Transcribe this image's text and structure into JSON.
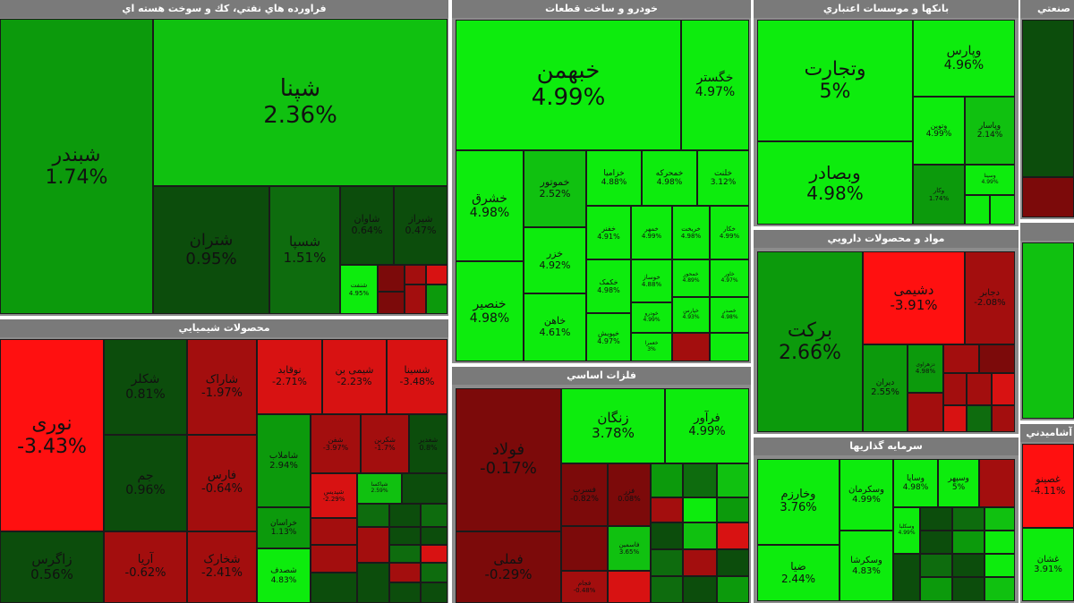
{
  "sectors": {
    "refinery": {
      "title": "فراورده هاي نفتي، كك و سوخت هسته اي",
      "tiles": [
        {
          "sym": "شبندر",
          "pct": "1.74%"
        },
        {
          "sym": "شپنا",
          "pct": "2.36%"
        },
        {
          "sym": "شتران",
          "pct": "0.95%"
        },
        {
          "sym": "شسپا",
          "pct": "1.51%"
        },
        {
          "sym": "شاوان",
          "pct": "0.64%"
        },
        {
          "sym": "شیراز",
          "pct": "0.47%"
        },
        {
          "sym": "شنفت",
          "pct": "4.95%"
        }
      ]
    },
    "auto": {
      "title": "خودرو و ساخت قطعات",
      "tiles": [
        {
          "sym": "خبهمن",
          "pct": "4.99%"
        },
        {
          "sym": "خگستر",
          "pct": "4.97%"
        },
        {
          "sym": "خشرق",
          "pct": "4.98%"
        },
        {
          "sym": "خموتور",
          "pct": "2.52%"
        },
        {
          "sym": "خزامیا",
          "pct": "4.88%"
        },
        {
          "sym": "خمحرکه",
          "pct": "4.98%"
        },
        {
          "sym": "خلنت",
          "pct": "3.12%"
        },
        {
          "sym": "خزر",
          "pct": "4.92%"
        },
        {
          "sym": "خفنر",
          "pct": "4.91%"
        },
        {
          "sym": "خمهر",
          "pct": "4.99%"
        },
        {
          "sym": "خریخت",
          "pct": "4.98%"
        },
        {
          "sym": "خکار",
          "pct": "4.99%"
        },
        {
          "sym": "خصدر",
          "pct": "4.98%"
        },
        {
          "sym": "خکمک",
          "pct": "4.98%"
        },
        {
          "sym": "خوساز",
          "pct": "4.88%"
        },
        {
          "sym": "خمحور",
          "pct": "4.89%"
        },
        {
          "sym": "خاور",
          "pct": "4.97%"
        },
        {
          "sym": "خاهن",
          "pct": "4.61%"
        },
        {
          "sym": "خپویش",
          "pct": "4.97%"
        },
        {
          "sym": "خودرو",
          "pct": "4.99%"
        },
        {
          "sym": "خپارس",
          "pct": "4.93%"
        },
        {
          "sym": "خنصیر",
          "pct": "4.98%"
        },
        {
          "sym": "خعمرا",
          "pct": "3%"
        }
      ]
    },
    "banks": {
      "title": "بانكها و موسسات اعتباري",
      "tiles": [
        {
          "sym": "وتجارت",
          "pct": "5%"
        },
        {
          "sym": "وپارس",
          "pct": "4.96%"
        },
        {
          "sym": "وبصادر",
          "pct": "4.98%"
        },
        {
          "sym": "وتوین",
          "pct": "4.99%"
        },
        {
          "sym": "وپاسار",
          "pct": "2.14%"
        },
        {
          "sym": "وکار",
          "pct": "1.74%"
        },
        {
          "sym": "وسینا",
          "pct": "4.99%"
        }
      ]
    },
    "chemicals": {
      "title": "محصولات شيميايي",
      "tiles": [
        {
          "sym": "نوری",
          "pct": "-3.43%"
        },
        {
          "sym": "شکلر",
          "pct": "0.81%"
        },
        {
          "sym": "شاراک",
          "pct": "-1.97%"
        },
        {
          "sym": "نوقابد",
          "pct": "-2.71%"
        },
        {
          "sym": "شیمی بن",
          "pct": "-2.23%"
        },
        {
          "sym": "شسینا",
          "pct": "-3.48%"
        },
        {
          "sym": "جم",
          "pct": "0.96%"
        },
        {
          "sym": "فارس",
          "pct": "-0.64%"
        },
        {
          "sym": "شاملاب",
          "pct": "2.94%"
        },
        {
          "sym": "شفن",
          "pct": "-3.97%"
        },
        {
          "sym": "شکربن",
          "pct": "-1.7%"
        },
        {
          "sym": "شغدیر",
          "pct": "0.8%"
        },
        {
          "sym": "زاگرس",
          "pct": "0.56%"
        },
        {
          "sym": "آریا",
          "pct": "-0.62%"
        },
        {
          "sym": "شخارک",
          "pct": "-2.41%"
        },
        {
          "sym": "خراسان",
          "pct": "1.13%"
        },
        {
          "sym": "شصدف",
          "pct": "4.83%"
        },
        {
          "sym": "شپدیس",
          "pct": "-2.29%"
        },
        {
          "sym": "شپاکسا",
          "pct": "2.59%"
        }
      ]
    },
    "metals": {
      "title": "فلزات اساسي",
      "tiles": [
        {
          "sym": "فولاد",
          "pct": "-0.17%"
        },
        {
          "sym": "زنگان",
          "pct": "3.78%"
        },
        {
          "sym": "فرآور",
          "pct": "4.99%"
        },
        {
          "sym": "فسرب",
          "pct": "-0.82%"
        },
        {
          "sym": "فملی",
          "pct": "-0.29%"
        },
        {
          "sym": "فاسمین",
          "pct": "3.65%"
        },
        {
          "sym": "فزر",
          "pct": "0.08%"
        },
        {
          "sym": "فجام",
          "pct": "-0.48%"
        }
      ]
    },
    "pharma": {
      "title": "مواد و محصولات دارويي",
      "tiles": [
        {
          "sym": "برکت",
          "pct": "2.66%"
        },
        {
          "sym": "دشیمی",
          "pct": "-3.91%"
        },
        {
          "sym": "دجابر",
          "pct": "-2.08%"
        },
        {
          "sym": "دیران",
          "pct": "2.55%"
        },
        {
          "sym": "دزهراوی",
          "pct": "4.98%"
        }
      ]
    },
    "investment": {
      "title": "سرمايه گذاريها",
      "tiles": [
        {
          "sym": "وخارزم",
          "pct": "3.76%"
        },
        {
          "sym": "وسکرمان",
          "pct": "4.99%"
        },
        {
          "sym": "وساپا",
          "pct": "4.98%"
        },
        {
          "sym": "وسپهر",
          "pct": "5%"
        },
        {
          "sym": "وسکلبا",
          "pct": "4.99%"
        },
        {
          "sym": "ضیا",
          "pct": "2.44%"
        },
        {
          "sym": "وسکرشا",
          "pct": "4.83%"
        }
      ]
    },
    "industrial": {
      "title": "صنعتي",
      "tiles": []
    },
    "cement": {
      "title": "آشاميدني",
      "tiles": [
        {
          "sym": "غصینو",
          "pct": "-4.11%"
        },
        {
          "sym": "غشان",
          "pct": "3.91%"
        }
      ]
    }
  }
}
